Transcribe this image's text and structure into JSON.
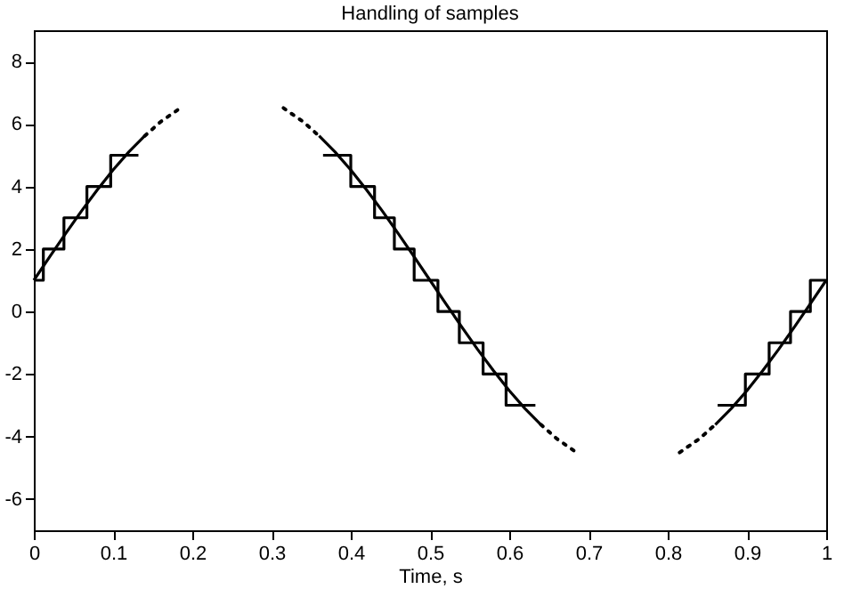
{
  "chart_data": {
    "type": "line",
    "title": "Handling of samples",
    "xlabel": "Time, s",
    "xlim": [
      0,
      1
    ],
    "xticks": [
      0,
      0.1,
      0.2,
      0.3,
      0.4,
      0.5,
      0.6,
      0.7,
      0.8,
      0.9,
      1
    ],
    "ylim": [
      -7,
      9
    ],
    "yticks": [
      -6,
      -4,
      -2,
      0,
      2,
      4,
      6,
      8
    ],
    "grid": false,
    "series": [
      {
        "line_style": "solid",
        "color": "#000000",
        "x": [
          0,
          0.02,
          0.04,
          0.06,
          0.08,
          0.1,
          0.12,
          0.14
        ],
        "values": [
          1,
          1.75,
          2.49,
          3.21,
          3.89,
          4.53,
          5.11,
          5.62
        ]
      },
      {
        "line_style": "dotted",
        "color": "#000000",
        "x": [
          0.14,
          0.16,
          0.185
        ],
        "values": [
          5.62,
          6.07,
          6.51
        ]
      },
      {
        "line_style": "dotted",
        "color": "#000000",
        "x": [
          0.315,
          0.34,
          0.36
        ],
        "values": [
          6.51,
          6.07,
          5.62
        ]
      },
      {
        "line_style": "solid",
        "color": "#000000",
        "x": [
          0.36,
          0.38,
          0.4,
          0.42,
          0.44,
          0.46,
          0.48,
          0.5,
          0.52,
          0.54,
          0.56,
          0.58,
          0.6,
          0.62,
          0.64
        ],
        "values": [
          5.62,
          5.11,
          4.53,
          3.89,
          3.21,
          2.49,
          1.75,
          1,
          0.25,
          -0.49,
          -1.21,
          -1.89,
          -2.53,
          -3.11,
          -3.62
        ]
      },
      {
        "line_style": "dotted",
        "color": "#000000",
        "x": [
          0.64,
          0.66,
          0.685
        ],
        "values": [
          -3.62,
          -4.07,
          -4.51
        ]
      },
      {
        "line_style": "dotted",
        "color": "#000000",
        "x": [
          0.815,
          0.84,
          0.86
        ],
        "values": [
          -4.51,
          -4.07,
          -3.62
        ]
      },
      {
        "line_style": "solid",
        "color": "#000000",
        "x": [
          0.86,
          0.88,
          0.9,
          0.92,
          0.94,
          0.96,
          0.98,
          1
        ],
        "values": [
          -3.62,
          -3.11,
          -2.53,
          -1.89,
          -1.21,
          -0.49,
          0.25,
          1
        ]
      },
      {
        "type": "step",
        "line_style": "solid",
        "color": "#000000",
        "x": [
          0,
          0.012,
          0.038,
          0.067,
          0.097,
          0.132
        ],
        "values": [
          1,
          2,
          3,
          4,
          5,
          5
        ]
      },
      {
        "type": "step",
        "line_style": "solid",
        "color": "#000000",
        "x": [
          0.365,
          0.4,
          0.43,
          0.455,
          0.48,
          0.51,
          0.537,
          0.567,
          0.596,
          0.633
        ],
        "values": [
          5,
          4,
          3,
          2,
          1,
          0,
          -1,
          -2,
          -3,
          -3
        ]
      },
      {
        "type": "step",
        "line_style": "solid",
        "color": "#000000",
        "x": [
          0.863,
          0.898,
          0.928,
          0.955,
          0.98,
          1
        ],
        "values": [
          -3,
          -2,
          -1,
          0,
          1,
          1
        ]
      }
    ]
  }
}
